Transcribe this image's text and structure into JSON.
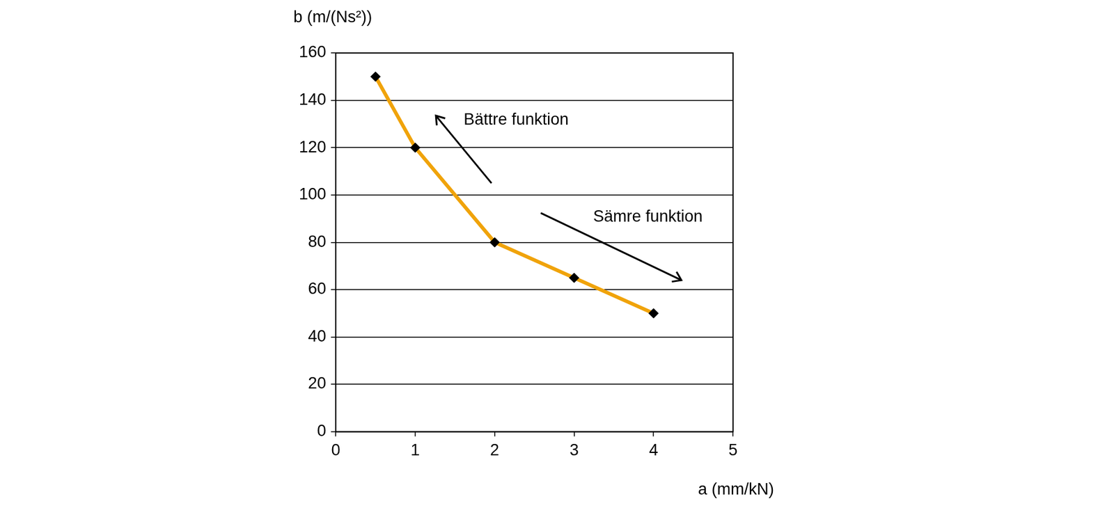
{
  "chart_data": {
    "type": "line",
    "x_label": "a (mm/kN)",
    "y_label": "b (m/(Ns²))",
    "x": [
      0.5,
      1,
      2,
      3,
      4
    ],
    "values": [
      150,
      120,
      80,
      65,
      50
    ],
    "color": "#f0a30a",
    "marker": "diamond",
    "xlim": [
      0,
      5
    ],
    "xticks": [
      0,
      1,
      2,
      3,
      4,
      5
    ],
    "ylim": [
      0,
      160
    ],
    "yticks": [
      0,
      20,
      40,
      60,
      80,
      100,
      120,
      140,
      160
    ],
    "grid": "y",
    "annotations": [
      "Bättre funktion",
      "Sämre funktion"
    ]
  }
}
